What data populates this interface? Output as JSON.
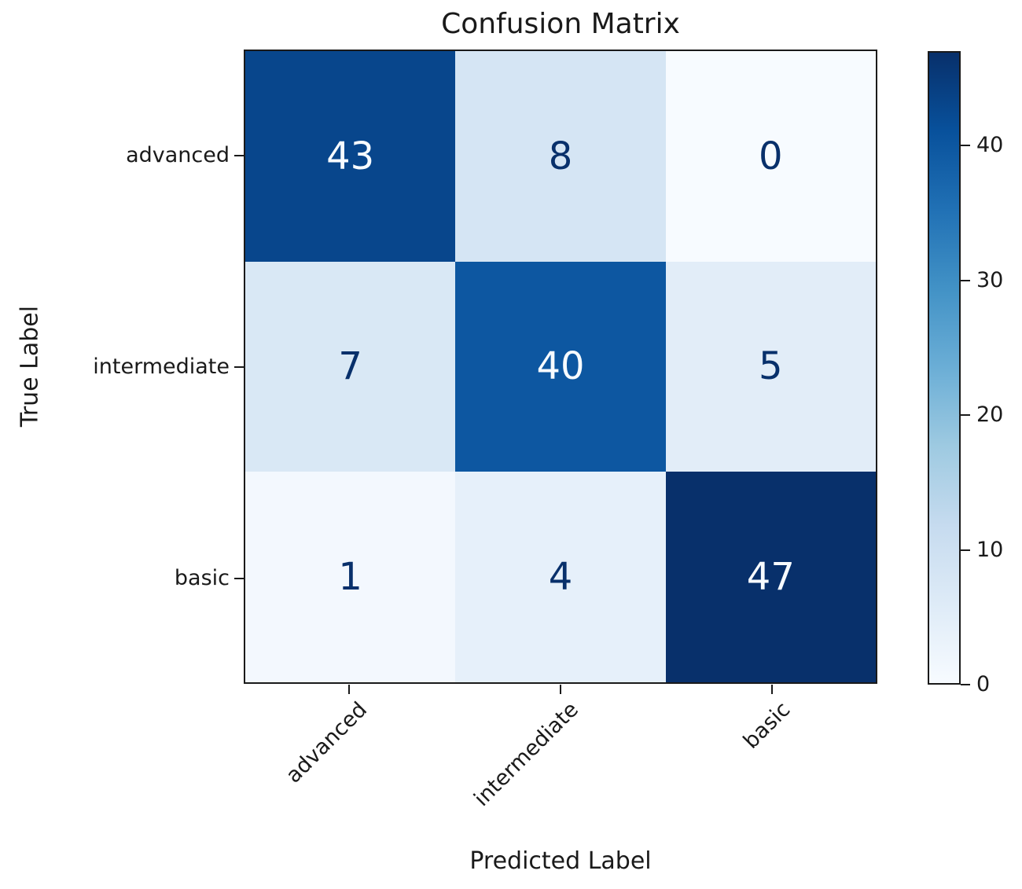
{
  "chart_data": {
    "type": "heatmap",
    "title": "Confusion Matrix",
    "xlabel": "Predicted Label",
    "ylabel": "True Label",
    "x_categories": [
      "advanced",
      "intermediate",
      "basic"
    ],
    "y_categories": [
      "advanced",
      "intermediate",
      "basic"
    ],
    "matrix": [
      [
        43,
        8,
        0
      ],
      [
        7,
        40,
        5
      ],
      [
        1,
        4,
        47
      ]
    ],
    "vmin": 0,
    "vmax": 47,
    "colormap": "Blues",
    "colorbar_ticks": [
      0,
      10,
      20,
      30,
      40
    ],
    "legend_position": "right-colorbar",
    "grid": false,
    "cell_colors": [
      [
        "#08468c",
        "#d5e5f4",
        "#f7fbff"
      ],
      [
        "#d9e8f5",
        "#0d57a1",
        "#e2edf8"
      ],
      [
        "#f3f8fe",
        "#e6f0fa",
        "#08306b"
      ]
    ],
    "cell_text_colors": [
      [
        "#f7fbff",
        "#08306b",
        "#08306b"
      ],
      [
        "#08306b",
        "#f7fbff",
        "#08306b"
      ],
      [
        "#08306b",
        "#08306b",
        "#f7fbff"
      ]
    ],
    "colorbar_gradient_bottom_to_top": [
      "#f7fbff",
      "#deebf7",
      "#c6dbef",
      "#9ecae1",
      "#6baed6",
      "#4292c6",
      "#2171b5",
      "#08519c",
      "#08306b"
    ],
    "axis_color": "#1a1a1a"
  }
}
